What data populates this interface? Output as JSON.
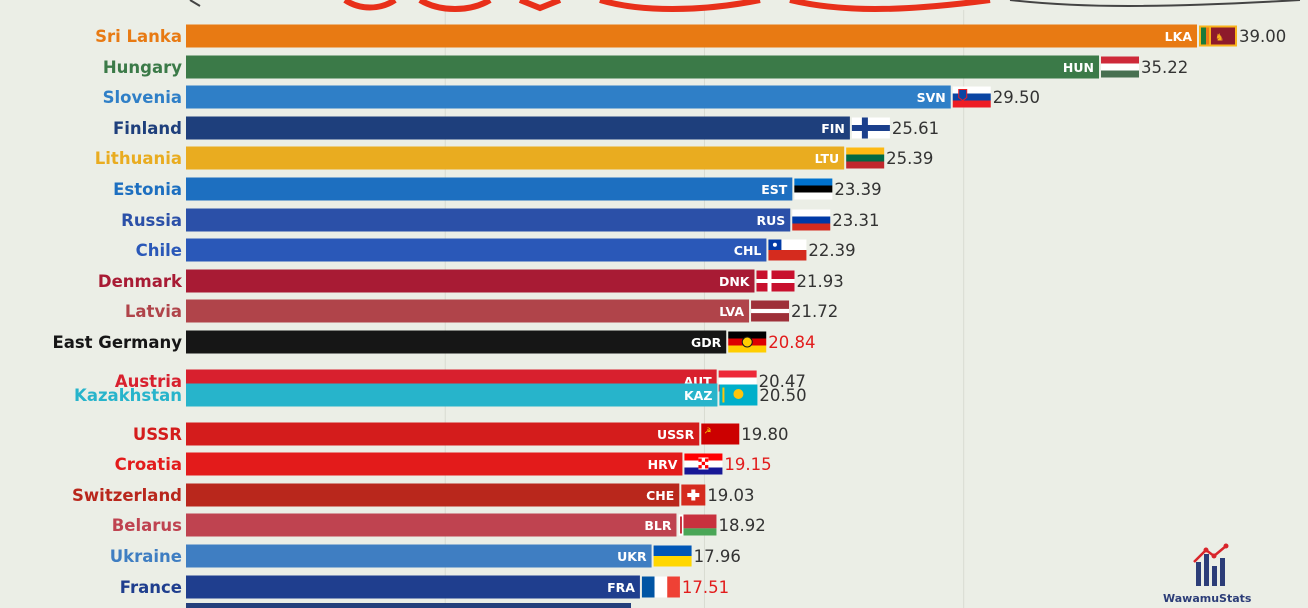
{
  "colors": {
    "background": "#ebeee6",
    "gridline": "#d8dbd2"
  },
  "watermark": {
    "brand": "WawamuStats"
  },
  "chart_data": {
    "type": "bar",
    "orientation": "horizontal",
    "grid": true,
    "series": [
      {
        "country": "Sri Lanka",
        "code": "LKA",
        "value": 39.0,
        "value_label": "39.00",
        "color": "#e87a13",
        "label_color": "#e87a13",
        "value_color": "#333333",
        "flag": "sri-lanka-flag-icon"
      },
      {
        "country": "Hungary",
        "code": "HUN",
        "value": 35.22,
        "value_label": "35.22",
        "color": "#3b7a48",
        "label_color": "#3b7a48",
        "value_color": "#333333",
        "flag": "hungary-flag-icon"
      },
      {
        "country": "Slovenia",
        "code": "SVN",
        "value": 29.5,
        "value_label": "29.50",
        "color": "#2f7fc7",
        "label_color": "#2f7fc7",
        "value_color": "#333333",
        "flag": "slovenia-flag-icon"
      },
      {
        "country": "Finland",
        "code": "FIN",
        "value": 25.61,
        "value_label": "25.61",
        "color": "#1e3f7c",
        "label_color": "#1e3f7c",
        "value_color": "#333333",
        "flag": "finland-flag-icon"
      },
      {
        "country": "Lithuania",
        "code": "LTU",
        "value": 25.39,
        "value_label": "25.39",
        "color": "#e9ac20",
        "label_color": "#e9ac20",
        "value_color": "#333333",
        "flag": "lithuania-flag-icon"
      },
      {
        "country": "Estonia",
        "code": "EST",
        "value": 23.39,
        "value_label": "23.39",
        "color": "#1d6fc0",
        "label_color": "#1d6fc0",
        "value_color": "#333333",
        "flag": "estonia-flag-icon"
      },
      {
        "country": "Russia",
        "code": "RUS",
        "value": 23.31,
        "value_label": "23.31",
        "color": "#2b50a8",
        "label_color": "#2b50a8",
        "value_color": "#333333",
        "flag": "russia-flag-icon"
      },
      {
        "country": "Chile",
        "code": "CHL",
        "value": 22.39,
        "value_label": "22.39",
        "color": "#2a58b8",
        "label_color": "#2a58b8",
        "value_color": "#333333",
        "flag": "chile-flag-icon"
      },
      {
        "country": "Denmark",
        "code": "DNK",
        "value": 21.93,
        "value_label": "21.93",
        "color": "#a81b34",
        "label_color": "#a81b34",
        "value_color": "#333333",
        "flag": "denmark-flag-icon"
      },
      {
        "country": "Latvia",
        "code": "LVA",
        "value": 21.72,
        "value_label": "21.72",
        "color": "#b0444a",
        "label_color": "#b0444a",
        "value_color": "#333333",
        "flag": "latvia-flag-icon"
      },
      {
        "country": "East Germany",
        "code": "GDR",
        "value": 20.84,
        "value_label": "20.84",
        "color": "#161616",
        "label_color": "#161616",
        "value_color": "#e21c1c",
        "flag": "east-germany-flag-icon"
      },
      {
        "country": "Austria",
        "code": "AUT",
        "value": 20.47,
        "value_label": "20.47",
        "color": "#d8202e",
        "label_color": "#d8202e",
        "value_color": "#333333",
        "flag": "austria-flag-icon"
      },
      {
        "country": "Kazakhstan",
        "code": "KAZ",
        "value": 20.5,
        "value_label": "20.50",
        "color": "#27b4cb",
        "label_color": "#27b4cb",
        "value_color": "#333333",
        "flag": "kazakhstan-flag-icon"
      },
      {
        "country": "USSR",
        "code": "USSR",
        "value": 19.8,
        "value_label": "19.80",
        "color": "#d41c1c",
        "label_color": "#d41c1c",
        "value_color": "#333333",
        "flag": "ussr-flag-icon"
      },
      {
        "country": "Croatia",
        "code": "HRV",
        "value": 19.15,
        "value_label": "19.15",
        "color": "#e31b1b",
        "label_color": "#e31b1b",
        "value_color": "#e21c1c",
        "flag": "croatia-flag-icon"
      },
      {
        "country": "Switzerland",
        "code": "CHE",
        "value": 19.03,
        "value_label": "19.03",
        "color": "#b9271c",
        "label_color": "#b9271c",
        "value_color": "#333333",
        "flag": "switzerland-flag-icon"
      },
      {
        "country": "Belarus",
        "code": "BLR",
        "value": 18.92,
        "value_label": "18.92",
        "color": "#bf4350",
        "label_color": "#bf4350",
        "value_color": "#333333",
        "flag": "belarus-flag-icon"
      },
      {
        "country": "Ukraine",
        "code": "UKR",
        "value": 17.96,
        "value_label": "17.96",
        "color": "#3f7ec2",
        "label_color": "#3f7ec2",
        "value_color": "#333333",
        "flag": "ukraine-flag-icon"
      },
      {
        "country": "France",
        "code": "FRA",
        "value": 17.51,
        "value_label": "17.51",
        "color": "#1f3e8e",
        "label_color": "#1f3e8e",
        "value_color": "#e21c1c",
        "flag": "france-flag-icon"
      }
    ]
  }
}
